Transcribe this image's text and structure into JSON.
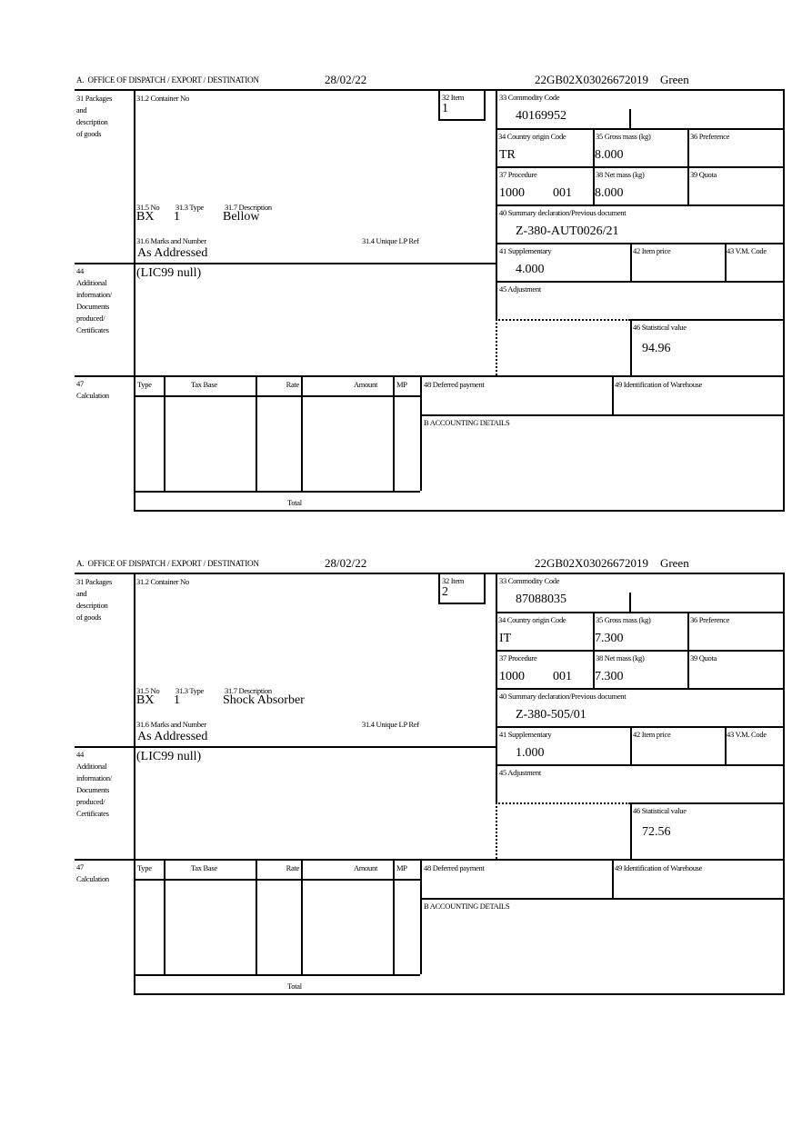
{
  "header": {
    "office": "A.  OFFICE OF DISPATCH / EXPORT / DESTINATION",
    "date": "28/02/22",
    "reference": "22GB02X03026672019    Green"
  },
  "labels": {
    "packages": "31 Packages\nand\ndescription\nof goods",
    "additional": "44\nAdditional\ninformation/\nDocuments\nproduced/\nCertificates",
    "calculation": "47\nCalculation",
    "container_no": "31.2 Container No",
    "item": "32 Item",
    "commodity_code": "33 Commodity Code",
    "country_origin": "34 Country origin Code",
    "gross_mass": "35 Gross mass (kg)",
    "preference": "36 Preference",
    "procedure": "37 Procedure",
    "net_mass": "38 Net mass (kg)",
    "quota": "39 Quota",
    "summary_declaration": "40 Summary declaration/Previous document",
    "supplementary": "41 Supplementary",
    "item_price": "42 Item price",
    "vm_code": "43 V.M. Code",
    "adjustment": "45 Adjustment",
    "statistical_value": "46 Statistical value",
    "no": "31.5 No",
    "type": "31.3 Type",
    "description": "31.7 Description",
    "marks": "31.6 Marks and Number",
    "unique_lp_ref": "31.4 Unique LP Ref",
    "calc_columns": [
      "Type",
      "Tax Base",
      "Rate",
      "Amount",
      "MP"
    ],
    "total": "Total",
    "deferred_payment": "48 Deferred payment",
    "warehouse": "49 Identification of Warehouse",
    "accounting": "B ACCOUNTING DETAILS"
  },
  "items": [
    {
      "item_no": "1",
      "commodity_code": "40169952",
      "country_origin": "TR",
      "gross_mass": "8.000",
      "procedure": "1000",
      "procedure_additional": "001",
      "net_mass": "8.000",
      "summary_declaration": "Z-380-AUT0026/21",
      "supplementary": "4.000",
      "statistical_value": "94.96",
      "package_no": "BX",
      "package_type": "1",
      "description": "Bellow",
      "marks": "As Addressed",
      "additional_info": "(LIC99 null)"
    },
    {
      "item_no": "2",
      "commodity_code": "87088035",
      "country_origin": "IT",
      "gross_mass": "7.300",
      "procedure": "1000",
      "procedure_additional": "001",
      "net_mass": "7.300",
      "summary_declaration": "Z-380-505/01",
      "supplementary": "1.000",
      "statistical_value": "72.56",
      "package_no": "BX",
      "package_type": "1",
      "description": "Shock Absorber",
      "marks": "As Addressed",
      "additional_info": "(LIC99 null)"
    }
  ]
}
